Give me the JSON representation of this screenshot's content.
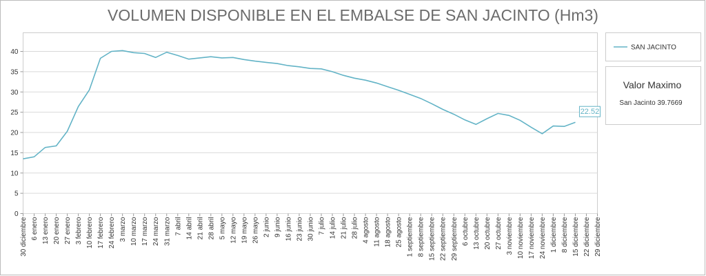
{
  "chart_data": {
    "type": "line",
    "title": "VOLUMEN DISPONIBLE EN EL EMBALSE DE SAN JACINTO (Hm3)",
    "categories": [
      "30 diciembre",
      "6 enero",
      "13 enero",
      "20 enero",
      "27 enero",
      "3 febrero",
      "10 febrero",
      "17 febrero",
      "24 febrero",
      "3 marzo",
      "10 marzo",
      "17 marzo",
      "24 marzo",
      "31 marzo",
      "7 abril",
      "14 abril",
      "21 abril",
      "28 abril",
      "5 mayo",
      "12 mayo",
      "19 mayo",
      "26 mayo",
      "2 junio",
      "9 junio",
      "16 junio",
      "23 junio",
      "30 junio",
      "7 julio",
      "14 julio",
      "21 julio",
      "28 julio",
      "4 agosto",
      "11 agosto",
      "18 agosto",
      "25 agosto",
      "1 septiembre",
      "8 septiembre",
      "15 septiembre",
      "22 septiembre",
      "29 septiembre",
      "6 octubre",
      "13 octubre",
      "20 octubre",
      "27 octubre",
      "3 noviembre",
      "10 noviembre",
      "17 noviembre",
      "24 noviembre",
      "1 diciembre",
      "8 diciembre",
      "15 diciembre",
      "22 diciembre",
      "29 diciembre"
    ],
    "series": [
      {
        "name": "SAN JACINTO",
        "color": "#62b3c6",
        "values": [
          13.5,
          14.0,
          16.3,
          16.7,
          20.3,
          26.4,
          30.5,
          38.3,
          40.0,
          40.2,
          39.7,
          39.5,
          38.5,
          39.8,
          39.0,
          38.1,
          38.4,
          38.7,
          38.4,
          38.5,
          38.0,
          37.6,
          37.3,
          37.0,
          36.5,
          36.2,
          35.8,
          35.7,
          35.0,
          34.1,
          33.4,
          32.9,
          32.2,
          31.3,
          30.4,
          29.4,
          28.4,
          27.1,
          25.7,
          24.5,
          23.1,
          22.0,
          23.4,
          24.7,
          24.2,
          23.0,
          21.3,
          19.7,
          21.6,
          21.5,
          22.52,
          null,
          null
        ]
      }
    ],
    "ylim": [
      0,
      44.6
    ],
    "yticks": [
      0,
      5,
      10,
      15,
      20,
      25,
      30,
      35,
      40
    ],
    "grid": true,
    "max_box": {
      "title": "Valor Maximo",
      "text": "San Jacinto 39.7669"
    }
  }
}
